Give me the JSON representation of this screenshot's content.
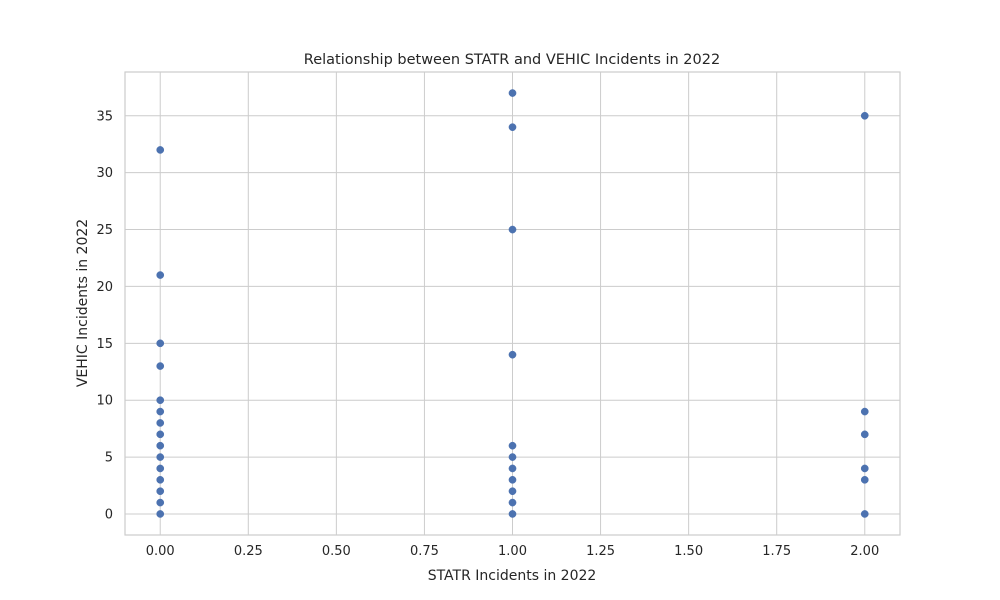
{
  "chart_data": {
    "type": "scatter",
    "title": "Relationship between STATR and VEHIC Incidents in 2022",
    "xlabel": "STATR Incidents in 2022",
    "ylabel": "VEHIC Incidents in 2022",
    "xlim": [
      -0.1,
      2.1
    ],
    "ylim": [
      -1.85,
      38.85
    ],
    "xticks": [
      "0.00",
      "0.25",
      "0.50",
      "0.75",
      "1.00",
      "1.25",
      "1.50",
      "1.75",
      "2.00"
    ],
    "yticks": [
      "0",
      "5",
      "10",
      "15",
      "20",
      "25",
      "30",
      "35"
    ],
    "grid": true,
    "point_color": "#4c72b0",
    "points": [
      {
        "x": 0,
        "y": 0
      },
      {
        "x": 0,
        "y": 1
      },
      {
        "x": 0,
        "y": 2
      },
      {
        "x": 0,
        "y": 3
      },
      {
        "x": 0,
        "y": 4
      },
      {
        "x": 0,
        "y": 5
      },
      {
        "x": 0,
        "y": 6
      },
      {
        "x": 0,
        "y": 7
      },
      {
        "x": 0,
        "y": 8
      },
      {
        "x": 0,
        "y": 9
      },
      {
        "x": 0,
        "y": 10
      },
      {
        "x": 0,
        "y": 13
      },
      {
        "x": 0,
        "y": 15
      },
      {
        "x": 0,
        "y": 21
      },
      {
        "x": 0,
        "y": 32
      },
      {
        "x": 1,
        "y": 0
      },
      {
        "x": 1,
        "y": 1
      },
      {
        "x": 1,
        "y": 2
      },
      {
        "x": 1,
        "y": 3
      },
      {
        "x": 1,
        "y": 4
      },
      {
        "x": 1,
        "y": 5
      },
      {
        "x": 1,
        "y": 6
      },
      {
        "x": 1,
        "y": 14
      },
      {
        "x": 1,
        "y": 25
      },
      {
        "x": 1,
        "y": 34
      },
      {
        "x": 1,
        "y": 37
      },
      {
        "x": 2,
        "y": 0
      },
      {
        "x": 2,
        "y": 3
      },
      {
        "x": 2,
        "y": 4
      },
      {
        "x": 2,
        "y": 7
      },
      {
        "x": 2,
        "y": 9
      },
      {
        "x": 2,
        "y": 35
      }
    ]
  }
}
